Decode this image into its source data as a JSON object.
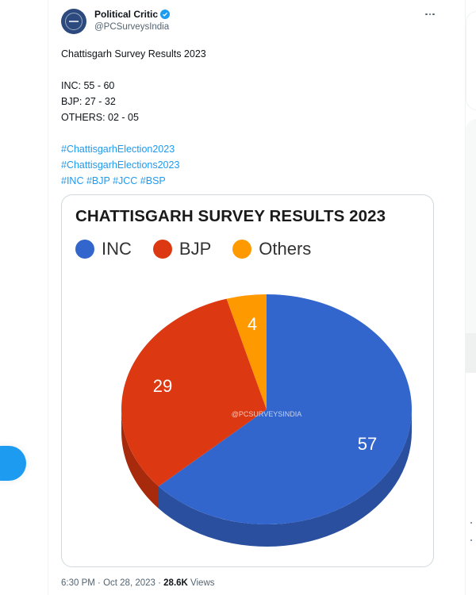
{
  "sidebar": {
    "post_button_label": ""
  },
  "tweet": {
    "author": {
      "display_name": "Political Critic",
      "handle": "@PCSurveysIndia",
      "verified": true
    },
    "more_button_icon": "ellipsis-icon",
    "text_lines": [
      "Chattisgarh Survey Results 2023",
      "",
      "INC: 55 - 60",
      "BJP: 27 - 32",
      "OTHERS: 02 - 05",
      ""
    ],
    "hashtag_lines": [
      "#ChattisgarhElection2023",
      "#ChattisgarhElections2023",
      "#INC #BJP #JCC #BSP"
    ],
    "timestamp": {
      "time": "6:30 PM",
      "separator": " · ",
      "date": "Oct 28, 2023",
      "views_count": "28.6K",
      "views_label": " Views"
    }
  },
  "media": {
    "watermark": "@PCSURVEYSINDIA"
  },
  "colors": {
    "accent": "#1d9bf0",
    "inc": "#3366cc",
    "inc_side": "#2a4f9e",
    "bjp": "#dc3912",
    "bjp_side": "#a82a0d",
    "others": "#ff9900",
    "others_side": "#c47600"
  },
  "chart_data": {
    "type": "pie",
    "style": "3d",
    "title": "CHATTISGARH SURVEY RESULTS 2023",
    "legend_position": "top",
    "categories": [
      "INC",
      "BJP",
      "Others"
    ],
    "values": [
      57,
      29,
      4
    ],
    "labels": [
      "57",
      "29",
      "4"
    ],
    "colors": [
      "#3366cc",
      "#dc3912",
      "#ff9900"
    ],
    "watermark": "@PCSURVEYSINDIA"
  }
}
